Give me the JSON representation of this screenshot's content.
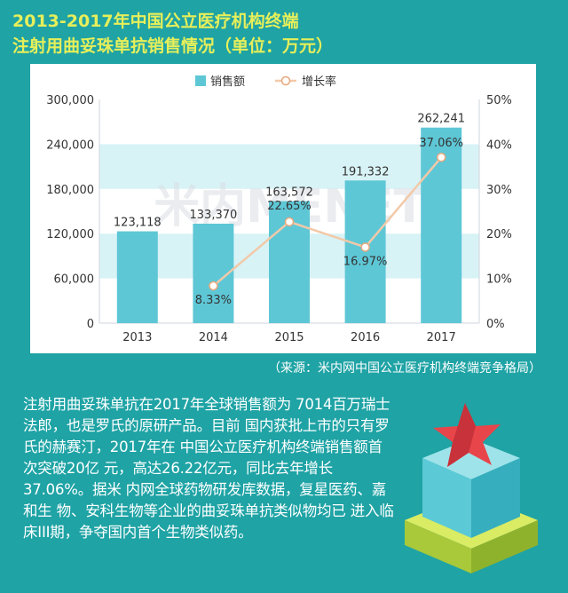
{
  "title": {
    "line1": "2013-2017年中国公立医疗机构终端",
    "line2": "注射用曲妥珠单抗销售情况（单位：万元）"
  },
  "watermark": "米内MENET",
  "chart_data": {
    "type": "bar+line",
    "categories": [
      "2013",
      "2014",
      "2015",
      "2016",
      "2017"
    ],
    "series": [
      {
        "name": "销售额",
        "type": "bar",
        "axis": "left",
        "values": [
          123118,
          133370,
          163572,
          191332,
          262241
        ],
        "labels": [
          "123,118",
          "133,370",
          "163,572",
          "191,332",
          "262,241"
        ]
      },
      {
        "name": "增长率",
        "type": "line",
        "axis": "right",
        "x": [
          "2014",
          "2015",
          "2016",
          "2017"
        ],
        "values": [
          8.33,
          22.65,
          16.97,
          37.06
        ],
        "labels": [
          "8.33%",
          "22.65%",
          "16.97%",
          "37.06%"
        ]
      }
    ],
    "y_left": {
      "range": [
        0,
        300000
      ],
      "ticks": [
        0,
        60000,
        120000,
        180000,
        240000,
        300000
      ],
      "tick_labels": [
        "0",
        "60,000",
        "120,000",
        "180,000",
        "240,000",
        "300,000"
      ]
    },
    "y_right": {
      "range": [
        0,
        50
      ],
      "ticks": [
        0,
        10,
        20,
        30,
        40,
        50
      ],
      "tick_labels": [
        "0%",
        "10%",
        "20%",
        "30%",
        "40%",
        "50%"
      ]
    },
    "legend_position": "top-center",
    "grid": "alternating horizontal bands",
    "colors": {
      "bar": "#5ec7d6",
      "line": "#f2c9a8",
      "band": "#d8f3f6"
    }
  },
  "source": "（来源：米内网中国公立医疗机构终端竞争格局）",
  "description": [
    "注射用曲妥珠单抗在2017年全球销售额为",
    "7014百万瑞士法郎，也是罗氏的原研产品。目前",
    "国内获批上市的只有罗氏的赫赛汀，2017年在",
    "中国公立医疗机构终端销售额首次突破20亿",
    "元，高达26.22亿元，同比去年增长37.06%。据米",
    "内网全球药物研发库数据，复星医药、嘉和生",
    "物、安科生物等企业的曲妥珠单抗类似物均已",
    "进入临床III期，争夺国内首个生物类似药。"
  ],
  "decoration": {
    "name": "star-on-cube-icon",
    "colors": [
      "#e84c4c",
      "#5fc6d4",
      "#c6e04a"
    ]
  }
}
